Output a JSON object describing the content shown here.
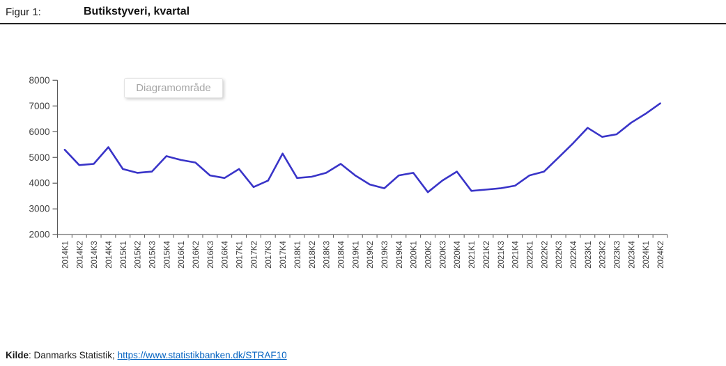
{
  "header": {
    "figure_label": "Figur 1:",
    "title": "Butikstyveri, kvartal"
  },
  "tooltip": {
    "text": "Diagramområde"
  },
  "footer": {
    "source_label": "Kilde",
    "source_text": ": Danmarks Statistik; ",
    "link_text": "https://www.statistikbanken.dk/STRAF10"
  },
  "colors": {
    "line": "#3934c8",
    "axis": "#595959",
    "tick_label": "#3f3f3f",
    "link": "#0563C1",
    "tooltip_text": "#a6a6a6"
  },
  "chart_data": {
    "type": "line",
    "title": "Butikstyveri, kvartal",
    "categories": [
      "2014K1",
      "2014K2",
      "2014K3",
      "2014K4",
      "2015K1",
      "2015K2",
      "2015K3",
      "2015K4",
      "2016K1",
      "2016K2",
      "2016K3",
      "2016K4",
      "2017K1",
      "2017K2",
      "2017K3",
      "2017K4",
      "2018K1",
      "2018K2",
      "2018K3",
      "2018K4",
      "2019K1",
      "2019K2",
      "2019K3",
      "2019K4",
      "2020K1",
      "2020K2",
      "2020K3",
      "2020K4",
      "2021K1",
      "2021K2",
      "2021K3",
      "2021K4",
      "2022K1",
      "2022K2",
      "2022K3",
      "2022K4",
      "2023K1",
      "2023K2",
      "2023K3",
      "2023K4",
      "2024K1",
      "2024K2"
    ],
    "values": [
      5300,
      4700,
      4750,
      5400,
      4550,
      4400,
      4450,
      5050,
      4900,
      4800,
      4300,
      4200,
      4550,
      3850,
      4100,
      5150,
      4200,
      4250,
      4400,
      4750,
      4300,
      3950,
      3800,
      4300,
      4400,
      3650,
      4100,
      4450,
      3700,
      3750,
      3800,
      3900,
      4300,
      4450,
      5000,
      5550,
      6150,
      5800,
      5900,
      6350,
      6700,
      7100
    ],
    "xlabel": "",
    "ylabel": "",
    "ylim": [
      2000,
      8000
    ],
    "yticks": [
      2000,
      3000,
      4000,
      5000,
      6000,
      7000,
      8000
    ],
    "grid": false,
    "legend": false
  }
}
